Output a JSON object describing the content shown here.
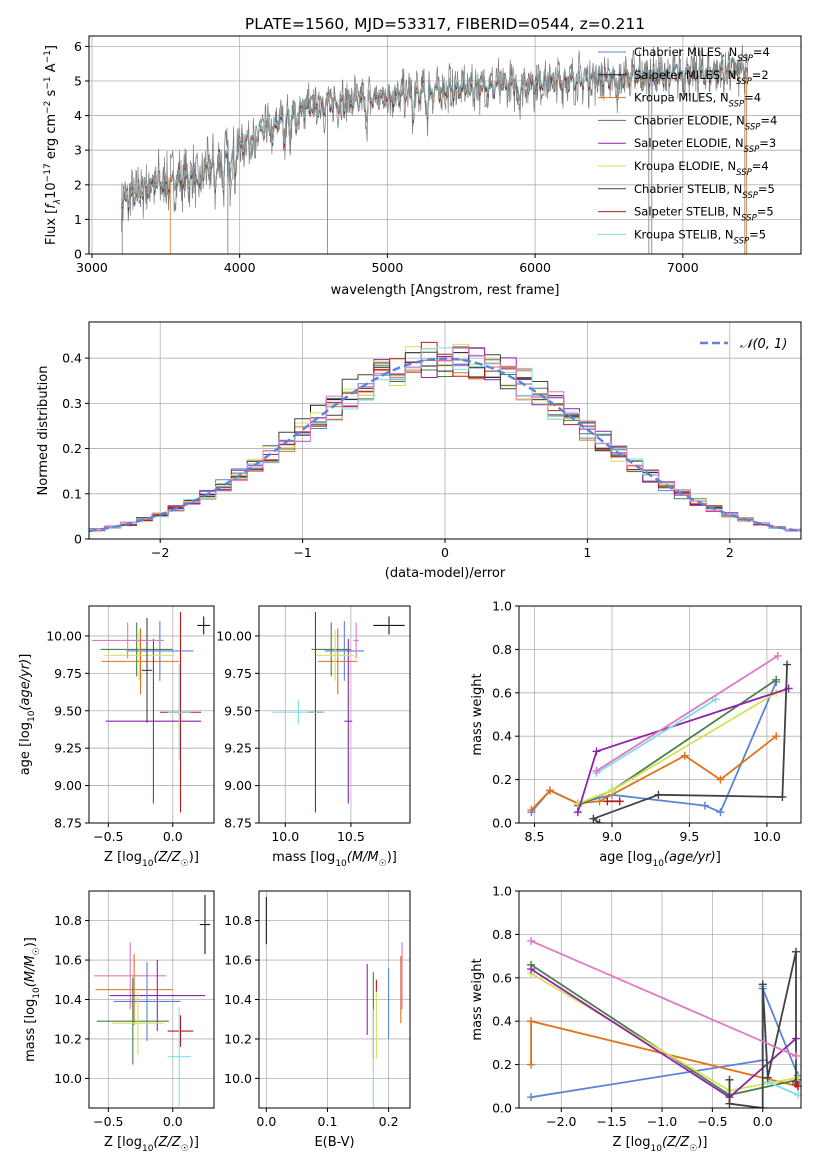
{
  "title": "PLATE=1560, MJD=53317, FIBERID=0544, z=0.211",
  "colors": {
    "Chabrier MILES": "#5b84d8",
    "Salpeter MILES": "#1a1a1a",
    "Kroupa MILES": "#e0731b",
    "Chabrier ELODIE": "#4b7f4e",
    "Salpeter ELODIE": "#8e24aa",
    "Kroupa ELODIE": "#d4e157",
    "Chabrier STELIB": "#424242",
    "Salpeter STELIB": "#b71c1c",
    "Kroupa STELIB": "#80deea",
    "data": "#7a7a7a",
    "ssp_pink": "#e377c2"
  },
  "chart_data": [
    {
      "type": "line",
      "id": "spectrum",
      "title": "PLATE=1560, MJD=53317, FIBERID=0544, z=0.211",
      "xlabel": "wavelength [Angstrom, rest frame]",
      "ylabel": "Flux [f_λ 10^-17 erg cm^-2 s^-1 A^-1]",
      "xlim": [
        2980,
        7800
      ],
      "ylim": [
        0,
        6.3
      ],
      "xticks": [
        3000,
        4000,
        5000,
        6000,
        7000
      ],
      "yticks": [
        0,
        1,
        2,
        3,
        4,
        5,
        6
      ],
      "grid": true,
      "legend_position": "top-right",
      "continuum_anchors": [
        [
          3200,
          1.5
        ],
        [
          3400,
          2.0
        ],
        [
          3700,
          2.25
        ],
        [
          3950,
          2.9
        ],
        [
          4100,
          3.45
        ],
        [
          4400,
          4.2
        ],
        [
          4700,
          4.4
        ],
        [
          5000,
          4.55
        ],
        [
          5500,
          4.8
        ],
        [
          6000,
          4.95
        ],
        [
          6500,
          5.1
        ],
        [
          7000,
          5.2
        ],
        [
          7400,
          5.3
        ]
      ],
      "legend": [
        {
          "label": "Chabrier MILES, N_SSP=4",
          "color": "#5b84d8"
        },
        {
          "label": "Salpeter MILES, N_SSP=2",
          "color": "#1a1a1a"
        },
        {
          "label": "Kroupa MILES, N_SSP=4",
          "color": "#e0731b"
        },
        {
          "label": "Chabrier ELODIE, N_SSP=4",
          "color": "#4b7f4e"
        },
        {
          "label": "Salpeter ELODIE, N_SSP=3",
          "color": "#8e24aa"
        },
        {
          "label": "Kroupa ELODIE, N_SSP=4",
          "color": "#d4e157"
        },
        {
          "label": "Chabrier STELIB, N_SSP=5",
          "color": "#424242"
        },
        {
          "label": "Salpeter STELIB, N_SSP=5",
          "color": "#b71c1c"
        },
        {
          "label": "Kroupa STELIB, N_SSP=5",
          "color": "#80deea"
        }
      ]
    },
    {
      "type": "histogram",
      "id": "residuals",
      "xlabel": "(data-model)/error",
      "ylabel": "Normed distribution",
      "xlim": [
        -2.5,
        2.5
      ],
      "ylim": [
        0,
        0.48
      ],
      "xticks": [
        -2,
        -1,
        0,
        1,
        2
      ],
      "yticks": [
        0.0,
        0.1,
        0.2,
        0.3,
        0.4
      ],
      "bin_edges_range": [
        -2.5,
        2.5
      ],
      "n_bins": 45,
      "grid": true,
      "legend_position": "top-right",
      "reference_curve": {
        "label": "𝒩(0, 1)",
        "mean": 0,
        "sigma": 1,
        "color": "#5b84d8",
        "style": "dashed"
      }
    },
    {
      "type": "errorbar",
      "id": "age-vs-Z",
      "xlabel": "Z [log10(Z/Z☉)]",
      "ylabel": "age [log10(age/yr)]",
      "xlim": [
        -0.65,
        0.32
      ],
      "ylim": [
        8.75,
        10.2
      ],
      "xticks": [
        -0.5,
        0.0
      ],
      "xticklabels": [
        "−0.5",
        "0.0"
      ],
      "yticks": [
        8.75,
        9.0,
        9.25,
        9.5,
        9.75,
        10.0
      ],
      "yticklabels": [
        "8.75",
        "9.00",
        "9.25",
        "9.50",
        "9.75",
        "10.00"
      ],
      "grid": true,
      "points": [
        {
          "series": "Chabrier MILES",
          "x": -0.1,
          "xerr": 0.26,
          "y": 9.9,
          "yerr": 0.2
        },
        {
          "series": "Kroupa MILES",
          "x": -0.25,
          "xerr": 0.3,
          "y": 9.83,
          "yerr": 0.22
        },
        {
          "series": "Chabrier ELODIE",
          "x": -0.28,
          "xerr": 0.28,
          "y": 9.91,
          "yerr": 0.18
        },
        {
          "series": "Salpeter ELODIE",
          "x": -0.15,
          "xerr": 0.37,
          "y": 9.43,
          "yerr": 0.55
        },
        {
          "series": "Kroupa ELODIE",
          "x": -0.26,
          "xerr": 0.27,
          "y": 9.87,
          "yerr": 0.17
        },
        {
          "series": "Salpeter STELIB",
          "x": 0.06,
          "xerr": 0.16,
          "y": 9.49,
          "yerr": 0.67
        },
        {
          "series": "Kroupa STELIB",
          "x": 0.05,
          "xerr": 0.09,
          "y": 9.49,
          "yerr": 0.32
        },
        {
          "series": "Chabrier STELIB",
          "x": -0.2,
          "xerr": 0.04,
          "y": 9.77,
          "yerr": 0.35
        },
        {
          "series": "ssp_pink",
          "x": -0.35,
          "xerr": 0.28,
          "y": 9.97,
          "yerr": 0.12
        },
        {
          "series": "Salpeter MILES",
          "x": 0.24,
          "xerr": 0.05,
          "y": 10.07,
          "yerr": 0.06
        }
      ]
    },
    {
      "type": "errorbar",
      "id": "age-vs-mass",
      "xlabel": "mass [log10(M/M☉)]",
      "ylabel": "",
      "xlim": [
        9.8,
        10.95
      ],
      "ylim": [
        8.75,
        10.2
      ],
      "xticks": [
        10.0,
        10.5
      ],
      "xticklabels": [
        "10.0",
        "10.5"
      ],
      "yticks": [
        8.75,
        9.0,
        9.25,
        9.5,
        9.75,
        10.0
      ],
      "yticklabels": [
        "8.75",
        "9.00",
        "9.25",
        "9.50",
        "9.75",
        "10.00"
      ],
      "grid": true,
      "points": [
        {
          "series": "Chabrier MILES",
          "x": 10.45,
          "xerr": 0.15,
          "y": 9.9,
          "yerr": 0.2
        },
        {
          "series": "Kroupa MILES",
          "x": 10.4,
          "xerr": 0.15,
          "y": 9.83,
          "yerr": 0.22
        },
        {
          "series": "Chabrier ELODIE",
          "x": 10.35,
          "xerr": 0.15,
          "y": 9.91,
          "yerr": 0.18
        },
        {
          "series": "Salpeter ELODIE",
          "x": 10.48,
          "xerr": 0.03,
          "y": 9.43,
          "yerr": 0.55
        },
        {
          "series": "Kroupa ELODIE",
          "x": 10.38,
          "xerr": 0.14,
          "y": 9.87,
          "yerr": 0.17
        },
        {
          "series": "Salpeter STELIB",
          "x": 10.23,
          "xerr": 0.06,
          "y": 9.49,
          "yerr": 0.67
        },
        {
          "series": "Kroupa STELIB",
          "x": 10.1,
          "xerr": 0.2,
          "y": 9.49,
          "yerr": 0.08
        },
        {
          "series": "Salpeter MILES",
          "x": 10.79,
          "xerr": 0.12,
          "y": 10.07,
          "yerr": 0.06
        },
        {
          "series": "ssp_pink",
          "x": 10.54,
          "xerr": 0.02,
          "y": 9.97,
          "yerr": 0.12
        }
      ]
    },
    {
      "type": "line",
      "id": "massweight-vs-age",
      "xlabel": "age [log10(age/yr)]",
      "ylabel": "mass weight",
      "xlim": [
        8.4,
        10.22
      ],
      "ylim": [
        0.0,
        1.0
      ],
      "xticks": [
        8.5,
        9.0,
        9.5,
        10.0
      ],
      "xticklabels": [
        "8.5",
        "9.0",
        "9.5",
        "10.0"
      ],
      "yticks": [
        0.0,
        0.2,
        0.4,
        0.6,
        0.8,
        1.0
      ],
      "yticklabels": [
        "0.0",
        "0.2",
        "0.4",
        "0.6",
        "0.8",
        "1.0"
      ],
      "grid": true,
      "series": [
        {
          "name": "Chabrier MILES",
          "points": [
            [
              8.48,
              0.05
            ],
            [
              8.6,
              0.15
            ],
            [
              8.78,
              0.09
            ],
            [
              9.0,
              0.13
            ],
            [
              9.6,
              0.08
            ],
            [
              9.7,
              0.05
            ],
            [
              10.06,
              0.65
            ]
          ]
        },
        {
          "name": "Kroupa MILES",
          "points": [
            [
              8.48,
              0.06
            ],
            [
              8.6,
              0.15
            ],
            [
              8.78,
              0.09
            ],
            [
              8.92,
              0.1
            ],
            [
              9.47,
              0.31
            ],
            [
              9.7,
              0.2
            ],
            [
              10.06,
              0.4
            ]
          ]
        },
        {
          "name": "Chabrier ELODIE",
          "points": [
            [
              8.78,
              0.08
            ],
            [
              9.0,
              0.15
            ],
            [
              10.06,
              0.66
            ]
          ]
        },
        {
          "name": "Kroupa ELODIE",
          "points": [
            [
              8.78,
              0.09
            ],
            [
              9.0,
              0.15
            ],
            [
              10.06,
              0.6
            ]
          ]
        },
        {
          "name": "Salpeter ELODIE",
          "points": [
            [
              8.78,
              0.05
            ],
            [
              8.9,
              0.33
            ],
            [
              10.14,
              0.62
            ]
          ]
        },
        {
          "name": "Kroupa STELIB",
          "points": [
            [
              8.9,
              0.23
            ],
            [
              9.67,
              0.57
            ]
          ]
        },
        {
          "name": "Chabrier STELIB",
          "points": [
            [
              8.92,
              0.0
            ],
            [
              8.88,
              0.02
            ],
            [
              9.3,
              0.13
            ],
            [
              10.1,
              0.12
            ],
            [
              10.13,
              0.73
            ]
          ]
        },
        {
          "name": "ssp_pink",
          "points": [
            [
              8.9,
              0.24
            ],
            [
              10.07,
              0.77
            ]
          ]
        },
        {
          "name": "Salpeter STELIB",
          "points": [
            [
              8.97,
              0.1
            ],
            [
              9.05,
              0.1
            ]
          ]
        }
      ]
    },
    {
      "type": "errorbar",
      "id": "mass-vs-Z",
      "xlabel": "Z [log10(Z/Z☉)]",
      "ylabel": "mass [log10(M/M☉)]",
      "xlim": [
        -0.65,
        0.32
      ],
      "ylim": [
        9.85,
        10.95
      ],
      "xticks": [
        -0.5,
        0.0
      ],
      "xticklabels": [
        "−0.5",
        "0.0"
      ],
      "yticks": [
        10.0,
        10.2,
        10.4,
        10.6,
        10.8
      ],
      "yticklabels": [
        "10.0",
        "10.2",
        "10.4",
        "10.6",
        "10.8"
      ],
      "grid": true,
      "points": [
        {
          "series": "ssp_pink",
          "x": -0.33,
          "xerr": 0.28,
          "y": 10.52,
          "yerr": 0.17
        },
        {
          "series": "Kroupa MILES",
          "x": -0.3,
          "xerr": 0.3,
          "y": 10.45,
          "yerr": 0.18
        },
        {
          "series": "Salpeter ELODIE",
          "x": -0.12,
          "xerr": 0.37,
          "y": 10.42,
          "yerr": 0.18
        },
        {
          "series": "Chabrier MILES",
          "x": -0.2,
          "xerr": 0.26,
          "y": 10.39,
          "yerr": 0.2
        },
        {
          "series": "Chabrier ELODIE",
          "x": -0.31,
          "xerr": 0.28,
          "y": 10.29,
          "yerr": 0.22
        },
        {
          "series": "Kroupa ELODIE",
          "x": -0.27,
          "xerr": 0.2,
          "y": 10.28,
          "yerr": 0.16
        },
        {
          "series": "Salpeter STELIB",
          "x": 0.06,
          "xerr": 0.1,
          "y": 10.24,
          "yerr": 0.08
        },
        {
          "series": "Kroupa STELIB",
          "x": 0.05,
          "xerr": 0.09,
          "y": 10.11,
          "yerr": 0.25
        },
        {
          "series": "Salpeter MILES",
          "x": 0.25,
          "xerr": 0.04,
          "y": 10.78,
          "yerr": 0.15
        }
      ]
    },
    {
      "type": "errorbar",
      "id": "mass-vs-EBV",
      "xlabel": "E(B-V)",
      "ylabel": "",
      "xlim": [
        -0.012,
        0.235
      ],
      "ylim": [
        9.85,
        10.95
      ],
      "xticks": [
        0.0,
        0.1,
        0.2
      ],
      "xticklabels": [
        "0.0",
        "0.1",
        "0.2"
      ],
      "yticks": [
        10.0,
        10.2,
        10.4,
        10.6,
        10.8
      ],
      "yticklabels": [
        "10.0",
        "10.2",
        "10.4",
        "10.6",
        "10.8"
      ],
      "grid": true,
      "points": [
        {
          "series": "Salpeter MILES",
          "x": 0.0,
          "xerr": 0.0,
          "y": 10.8,
          "yerr": 0.12
        },
        {
          "series": "Salpeter ELODIE",
          "x": 0.165,
          "xerr": 0.0,
          "y": 10.4,
          "yerr": 0.18
        },
        {
          "series": "Chabrier ELODIE",
          "x": 0.175,
          "xerr": 0.0,
          "y": 10.32,
          "yerr": 0.22
        },
        {
          "series": "Kroupa ELODIE",
          "x": 0.18,
          "xerr": 0.0,
          "y": 10.3,
          "yerr": 0.2
        },
        {
          "series": "Kroupa STELIB",
          "x": 0.175,
          "xerr": 0.0,
          "y": 10.1,
          "yerr": 0.25
        },
        {
          "series": "Salpeter STELIB",
          "x": 0.18,
          "xerr": 0.0,
          "y": 10.47,
          "yerr": 0.03
        },
        {
          "series": "Kroupa MILES",
          "x": 0.22,
          "xerr": 0.0,
          "y": 10.45,
          "yerr": 0.17
        },
        {
          "series": "ssp_pink",
          "x": 0.222,
          "xerr": 0.0,
          "y": 10.52,
          "yerr": 0.17
        },
        {
          "series": "Chabrier MILES",
          "x": 0.2,
          "xerr": 0.0,
          "y": 10.38,
          "yerr": 0.18
        }
      ]
    },
    {
      "type": "line",
      "id": "massweight-vs-Z",
      "xlabel": "Z [log10(Z/Z☉)]",
      "ylabel": "mass weight",
      "xlim": [
        -2.42,
        0.38
      ],
      "ylim": [
        0.0,
        1.0
      ],
      "xticks": [
        -2.0,
        -1.5,
        -1.0,
        -0.5,
        0.0
      ],
      "xticklabels": [
        "−2.0",
        "−1.5",
        "−1.0",
        "−0.5",
        "0.0"
      ],
      "yticks": [
        0.0,
        0.2,
        0.4,
        0.6,
        0.8,
        1.0
      ],
      "yticklabels": [
        "0.0",
        "0.2",
        "0.4",
        "0.6",
        "0.8",
        "1.0"
      ],
      "grid": true,
      "series": [
        {
          "name": "Chabrier MILES",
          "points": [
            [
              -2.3,
              0.05
            ],
            [
              0.0,
              0.22
            ],
            [
              0.0,
              0.55
            ],
            [
              0.35,
              0.15
            ]
          ]
        },
        {
          "name": "Kroupa MILES",
          "points": [
            [
              -2.3,
              0.2
            ],
            [
              -2.3,
              0.4
            ],
            [
              0.35,
              0.1
            ]
          ]
        },
        {
          "name": "Chabrier ELODIE",
          "points": [
            [
              -2.3,
              0.66
            ],
            [
              -0.33,
              0.06
            ],
            [
              0.35,
              0.13
            ]
          ]
        },
        {
          "name": "Kroupa ELODIE",
          "points": [
            [
              -2.3,
              0.62
            ],
            [
              -0.33,
              0.08
            ],
            [
              0.35,
              0.14
            ]
          ]
        },
        {
          "name": "Salpeter ELODIE",
          "points": [
            [
              -2.3,
              0.64
            ],
            [
              -0.33,
              0.05
            ],
            [
              0.33,
              0.32
            ]
          ]
        },
        {
          "name": "Kroupa STELIB",
          "points": [
            [
              0.0,
              0.56
            ],
            [
              0.05,
              0.12
            ],
            [
              0.35,
              0.06
            ]
          ]
        },
        {
          "name": "Chabrier STELIB",
          "points": [
            [
              -0.33,
              0.13
            ],
            [
              -0.33,
              0.02
            ],
            [
              0.0,
              0.0
            ],
            [
              0.0,
              0.57
            ],
            [
              0.05,
              0.14
            ],
            [
              0.33,
              0.72
            ],
            [
              0.33,
              0.12
            ]
          ]
        },
        {
          "name": "ssp_pink",
          "points": [
            [
              -2.3,
              0.77
            ],
            [
              0.33,
              0.24
            ]
          ]
        },
        {
          "name": "Salpeter STELIB",
          "points": [
            [
              0.33,
              0.11
            ],
            [
              0.35,
              0.1
            ]
          ]
        }
      ]
    }
  ]
}
